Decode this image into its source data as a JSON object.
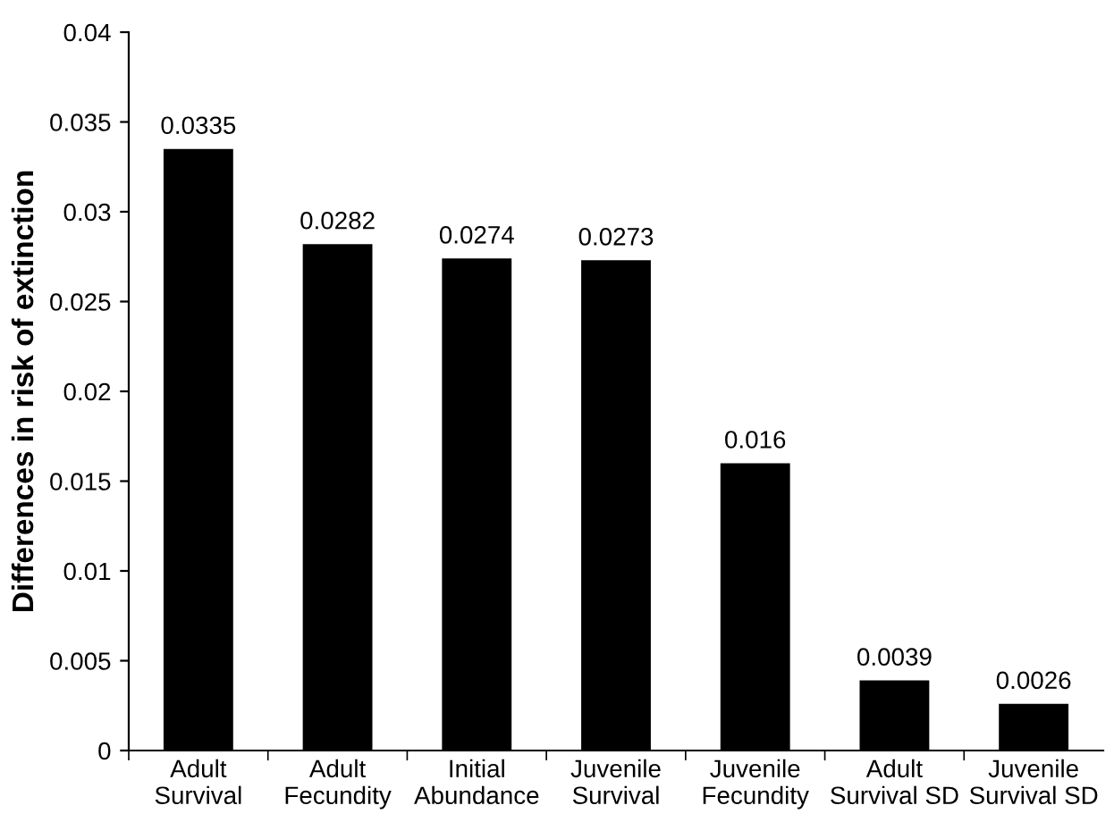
{
  "chart_data": {
    "type": "bar",
    "ylabel": "Differences in risk of extinction",
    "categories": [
      "Adult\nSurvival",
      "Adult\nFecundity",
      "Initial\nAbundance",
      "Juvenile\nSurvival",
      "Juvenile\nFecundity",
      "Adult\nSurvival SD",
      "Juvenile\nSurvival SD"
    ],
    "values": [
      0.0335,
      0.0282,
      0.0274,
      0.0273,
      0.016,
      0.0039,
      0.0026
    ],
    "color": "#000000",
    "ylim": [
      0,
      0.04
    ],
    "yticks": [
      0,
      0.005,
      0.01,
      0.015,
      0.02,
      0.025,
      0.03,
      0.035,
      0.04
    ],
    "data_labels": true,
    "grid": false
  }
}
